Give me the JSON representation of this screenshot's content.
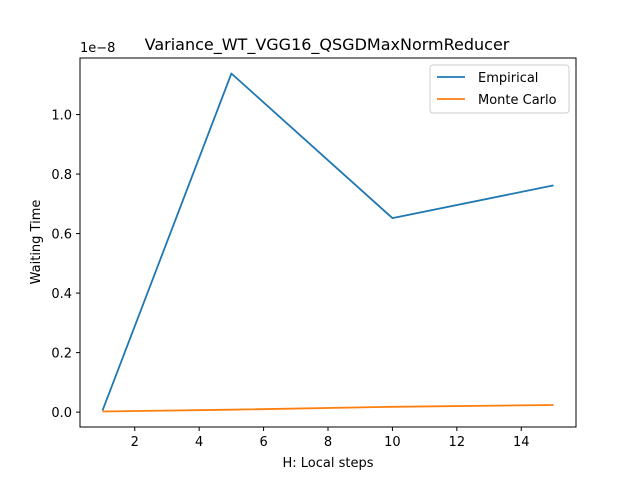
{
  "chart_data": {
    "type": "line",
    "title": "Variance_WT_VGG16_QSGDMaxNormReducer",
    "xlabel": "H: Local steps",
    "ylabel": "Waiting Time",
    "y_offset_text": "1e−8",
    "xlim": [
      0.3,
      15.7
    ],
    "ylim": [
      -0.5,
      11.9
    ],
    "x_ticks": [
      2,
      4,
      6,
      8,
      10,
      12,
      14
    ],
    "x_tick_labels": [
      "2",
      "4",
      "6",
      "8",
      "10",
      "12",
      "14"
    ],
    "y_ticks": [
      0,
      2,
      4,
      6,
      8,
      10
    ],
    "y_tick_labels": [
      "0.0",
      "0.2",
      "0.4",
      "0.6",
      "0.8",
      "1.0"
    ],
    "grid": false,
    "legend_position": "top-right",
    "x": [
      1,
      5,
      10,
      15
    ],
    "series": [
      {
        "name": "Empirical",
        "color": "#1f77b4",
        "values": [
          0.05,
          11.38,
          6.52,
          7.62
        ]
      },
      {
        "name": "Monte Carlo",
        "color": "#ff7f0e",
        "values": [
          0.02,
          0.08,
          0.18,
          0.24
        ]
      }
    ]
  }
}
